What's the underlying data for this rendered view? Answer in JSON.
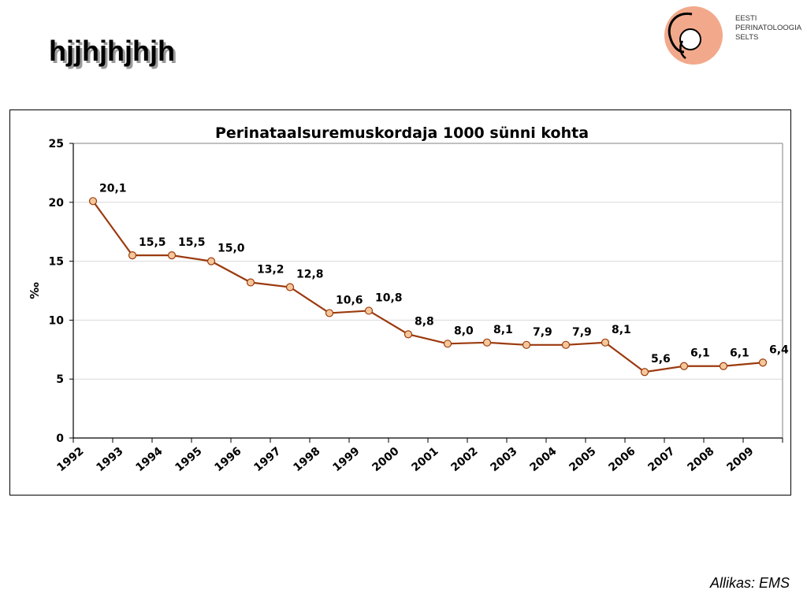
{
  "slide": {
    "title": "hjjhjhjhjh",
    "source": "Allikas: EMS"
  },
  "logo": {
    "lines": [
      "EESTI",
      "PERINATOLOOGIA",
      "SELTS"
    ]
  },
  "colors": {
    "line": "#9b3a0e",
    "marker_fill": "#f5c89a",
    "marker_stroke": "#9b3a0e",
    "grid": "#d9d9d9",
    "logo_ring": "#f2a98b"
  },
  "chart_data": {
    "type": "line",
    "title": "Perinataalsuremuskordaja 1000 sünni kohta",
    "ylabel": "‰",
    "xlabel": "",
    "ylim": [
      0,
      25
    ],
    "yticks": [
      "0",
      "5",
      "10",
      "15",
      "20",
      "25"
    ],
    "categories": [
      "1992",
      "1993",
      "1994",
      "1995",
      "1996",
      "1997",
      "1998",
      "1999",
      "2000",
      "2001",
      "2002",
      "2003",
      "2004",
      "2005",
      "2006",
      "2007",
      "2008",
      "2009"
    ],
    "series": [
      {
        "name": "Perinataalsuremuskordaja",
        "values": [
          20.1,
          15.5,
          15.5,
          15.0,
          13.2,
          12.8,
          10.6,
          10.8,
          8.8,
          8.0,
          8.1,
          7.9,
          7.9,
          8.1,
          5.6,
          6.1,
          6.1,
          6.4
        ],
        "labels": [
          "20,1",
          "15,5",
          "15,5",
          "15,0",
          "13,2",
          "12,8",
          "10,6",
          "10,8",
          "8,8",
          "8,0",
          "8,1",
          "7,9",
          "7,9",
          "8,1",
          "5,6",
          "6,1",
          "6,1",
          "6,4"
        ]
      }
    ],
    "grid": true,
    "legend": "none"
  }
}
